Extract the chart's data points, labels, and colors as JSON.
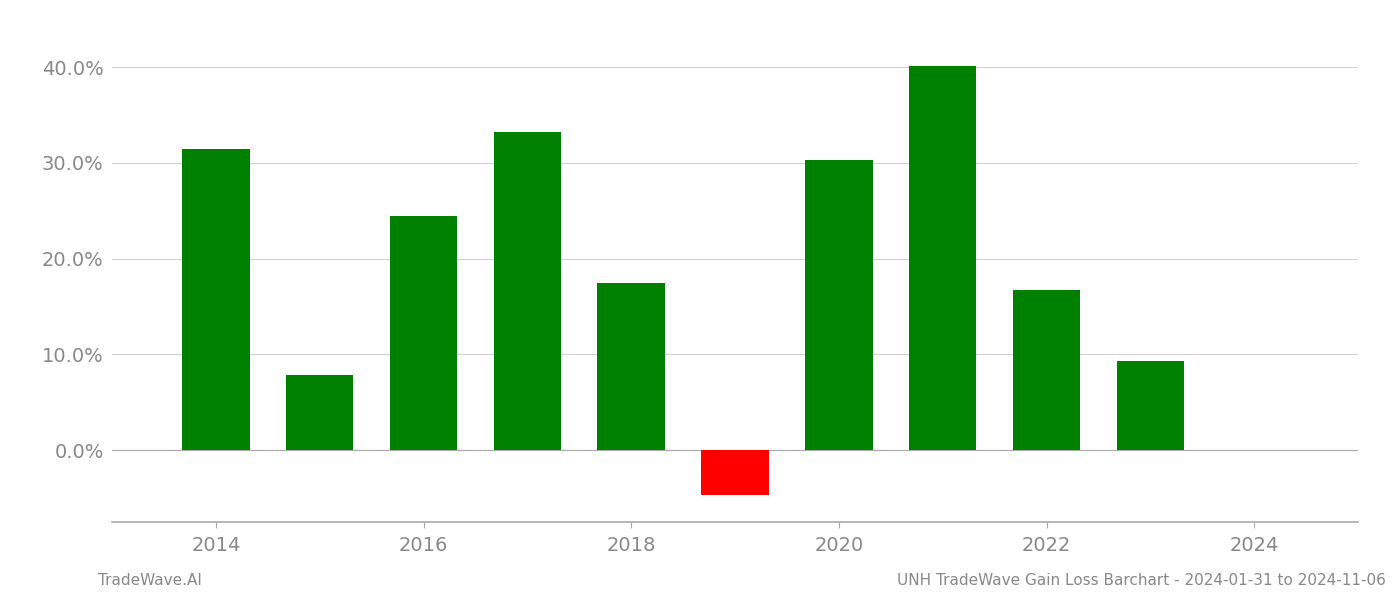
{
  "years": [
    2014,
    2015,
    2016,
    2017,
    2018,
    2019,
    2020,
    2021,
    2022,
    2023
  ],
  "values": [
    0.314,
    0.079,
    0.245,
    0.332,
    0.175,
    -0.047,
    0.303,
    0.401,
    0.167,
    0.093
  ],
  "colors": [
    "#008000",
    "#008000",
    "#008000",
    "#008000",
    "#008000",
    "#ff0000",
    "#008000",
    "#008000",
    "#008000",
    "#008000"
  ],
  "ylabel": "",
  "xlabel": "",
  "ylim_min": -0.075,
  "ylim_max": 0.445,
  "yticks": [
    0.0,
    0.1,
    0.2,
    0.3,
    0.4
  ],
  "xticks": [
    2014,
    2016,
    2018,
    2020,
    2022,
    2024
  ],
  "xlim_min": 2013.0,
  "xlim_max": 2025.0,
  "background_color": "#ffffff",
  "bar_width": 0.65,
  "grid_color": "#d0d0d0",
  "footer_left": "TradeWave.AI",
  "footer_right": "UNH TradeWave Gain Loss Barchart - 2024-01-31 to 2024-11-06",
  "axis_color": "#aaaaaa",
  "text_color": "#888888",
  "tick_fontsize": 14,
  "footer_fontsize": 11
}
